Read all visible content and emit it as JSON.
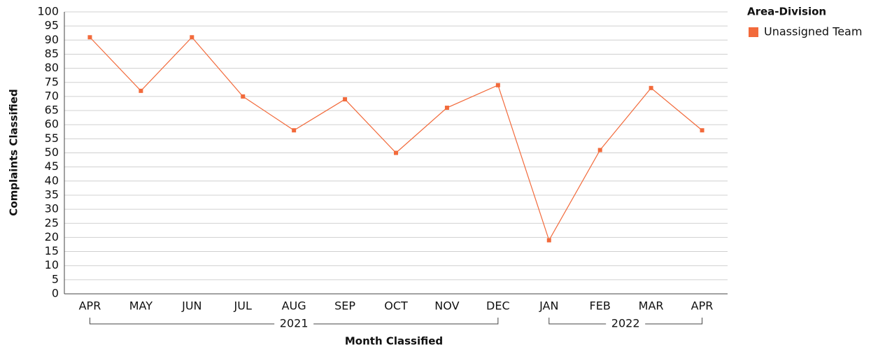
{
  "chart_data": {
    "type": "line",
    "x_label": "Month Classified",
    "y_label": "Complaints Classified",
    "legend_title": "Area-Division",
    "legend": "top-right",
    "grid": true,
    "categories": [
      "APR",
      "MAY",
      "JUN",
      "JUL",
      "AUG",
      "SEP",
      "OCT",
      "NOV",
      "DEC",
      "JAN",
      "FEB",
      "MAR",
      "APR"
    ],
    "groups": [
      {
        "label": "2021",
        "from": 0,
        "to": 8
      },
      {
        "label": "2022",
        "from": 9,
        "to": 12
      }
    ],
    "series": [
      {
        "name": "Unassigned Team",
        "color": "#f26a3b",
        "values": [
          91,
          72,
          91,
          70,
          58,
          69,
          50,
          66,
          74,
          19,
          51,
          73,
          58
        ]
      }
    ],
    "ylim": [
      0,
      100
    ],
    "yticks": [
      0,
      5,
      10,
      15,
      20,
      25,
      30,
      35,
      40,
      45,
      50,
      55,
      60,
      65,
      70,
      75,
      80,
      85,
      90,
      95,
      100
    ]
  }
}
